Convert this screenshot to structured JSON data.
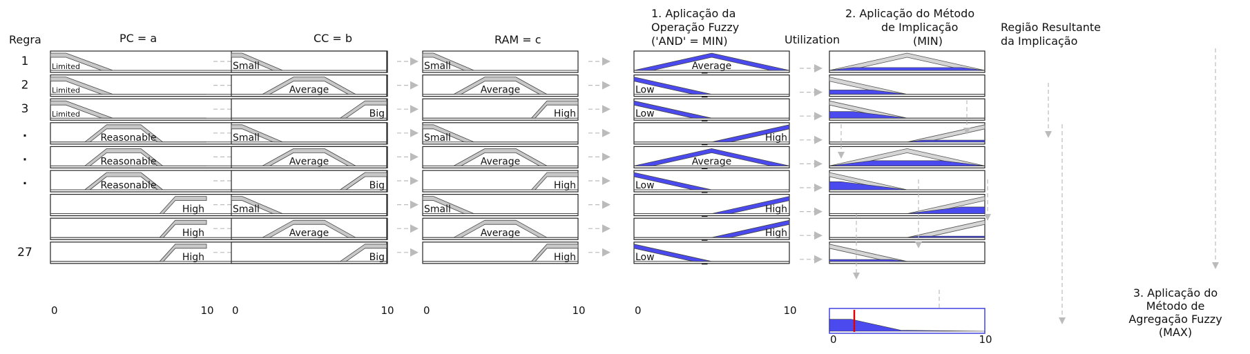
{
  "headers": {
    "rule": "Regra",
    "pc": "PC = a",
    "cc": "CC = b",
    "ram": "RAM = c",
    "step1": [
      "1. Aplicação da",
      "Operação Fuzzy",
      "('AND' = MIN)"
    ],
    "utilization": "Utilization",
    "step2": [
      "2. Aplicação do Método",
      "de Implicação",
      "(MIN)"
    ],
    "region": [
      "Região Resultante",
      "da Implicação"
    ],
    "step3": [
      "3. Aplicação do",
      "Método de",
      "Agregação Fuzzy",
      "(MAX)"
    ]
  },
  "rule_labels": [
    "1",
    "2",
    "3",
    ".",
    ".",
    ".",
    "",
    "",
    "27"
  ],
  "axis": {
    "min": "0",
    "max": "10"
  },
  "rules": [
    {
      "pc": "Limited",
      "cc": "Small",
      "ram": "Small",
      "out": "Average"
    },
    {
      "pc": "Limited",
      "cc": "Average",
      "ram": "Average",
      "out": "Low"
    },
    {
      "pc": "Limited",
      "cc": "Big",
      "ram": "High",
      "out": "Low"
    },
    {
      "pc": "Reasonable",
      "cc": "Small",
      "ram": "Small",
      "out": "High"
    },
    {
      "pc": "Reasonable",
      "cc": "Average",
      "ram": "Average",
      "out": "Average"
    },
    {
      "pc": "Reasonable",
      "cc": "Big",
      "ram": "High",
      "out": "Low"
    },
    {
      "pc": "High",
      "cc": "Small",
      "ram": "Small",
      "out": "High"
    },
    {
      "pc": "High",
      "cc": "Average",
      "ram": "Average",
      "out": "High"
    },
    {
      "pc": "High",
      "cc": "Big",
      "ram": "High",
      "out": "Low"
    }
  ],
  "implication_levels": [
    0.3,
    0.45,
    0.7,
    0.2,
    0.55,
    0.85,
    0.7,
    0.15,
    0.2
  ],
  "aggregation": {
    "value": 1.6
  },
  "colors": {
    "fill": "#4a4aee",
    "mf": "#c8c8c8",
    "cut": "#e00000",
    "arrow": "#bbbbbb"
  }
}
